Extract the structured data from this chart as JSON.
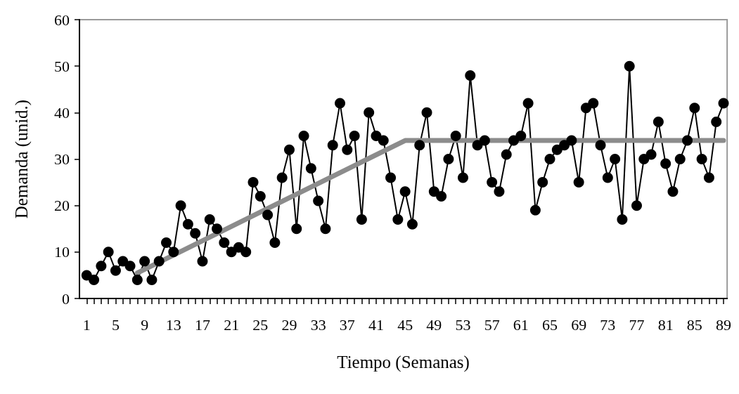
{
  "chart_data": {
    "type": "line",
    "xlabel": "Tiempo (Semanas)",
    "ylabel": "Demanda (unid.)",
    "xlim": [
      0,
      89.5
    ],
    "ylim": [
      0,
      60
    ],
    "yticks": [
      0,
      10,
      20,
      30,
      40,
      50,
      60
    ],
    "xticks": [
      1,
      {
        "value": 2,
        "label": null
      },
      {
        "value": 3,
        "label": null
      },
      {
        "value": 4,
        "label": null
      },
      5,
      {
        "value": 6,
        "label": null
      },
      {
        "value": 7,
        "label": null
      },
      {
        "value": 8,
        "label": null
      },
      9,
      {
        "value": 10,
        "label": null
      },
      {
        "value": 11,
        "label": null
      },
      {
        "value": 12,
        "label": null
      },
      13,
      {
        "value": 14,
        "label": null
      },
      {
        "value": 15,
        "label": null
      },
      {
        "value": 16,
        "label": null
      },
      17,
      {
        "value": 18,
        "label": null
      },
      {
        "value": 19,
        "label": null
      },
      {
        "value": 20,
        "label": null
      },
      21,
      {
        "value": 22,
        "label": null
      },
      {
        "value": 23,
        "label": null
      },
      {
        "value": 24,
        "label": null
      },
      25,
      {
        "value": 26,
        "label": null
      },
      {
        "value": 27,
        "label": null
      },
      {
        "value": 28,
        "label": null
      },
      29,
      {
        "value": 30,
        "label": null
      },
      {
        "value": 31,
        "label": null
      },
      {
        "value": 32,
        "label": null
      },
      33,
      {
        "value": 34,
        "label": null
      },
      {
        "value": 35,
        "label": null
      },
      {
        "value": 36,
        "label": null
      },
      37,
      {
        "value": 38,
        "label": null
      },
      {
        "value": 39,
        "label": null
      },
      {
        "value": 40,
        "label": null
      },
      41,
      {
        "value": 42,
        "label": null
      },
      {
        "value": 43,
        "label": null
      },
      {
        "value": 44,
        "label": null
      },
      45,
      {
        "value": 46,
        "label": null
      },
      {
        "value": 47,
        "label": null
      },
      {
        "value": 48,
        "label": null
      },
      49,
      {
        "value": 50,
        "label": null
      },
      {
        "value": 51,
        "label": null
      },
      {
        "value": 52,
        "label": null
      },
      53,
      {
        "value": 54,
        "label": null
      },
      {
        "value": 55,
        "label": null
      },
      {
        "value": 56,
        "label": null
      },
      57,
      {
        "value": 58,
        "label": null
      },
      {
        "value": 59,
        "label": null
      },
      {
        "value": 60,
        "label": null
      },
      61,
      {
        "value": 62,
        "label": null
      },
      {
        "value": 63,
        "label": null
      },
      {
        "value": 64,
        "label": null
      },
      65,
      {
        "value": 66,
        "label": null
      },
      {
        "value": 67,
        "label": null
      },
      {
        "value": 68,
        "label": null
      },
      69,
      {
        "value": 70,
        "label": null
      },
      {
        "value": 71,
        "label": null
      },
      {
        "value": 72,
        "label": null
      },
      73,
      {
        "value": 74,
        "label": null
      },
      {
        "value": 75,
        "label": null
      },
      {
        "value": 76,
        "label": null
      },
      77,
      {
        "value": 78,
        "label": null
      },
      {
        "value": 79,
        "label": null
      },
      {
        "value": 80,
        "label": null
      },
      81,
      {
        "value": 82,
        "label": null
      },
      {
        "value": 83,
        "label": null
      },
      {
        "value": 84,
        "label": null
      },
      85,
      {
        "value": 86,
        "label": null
      },
      {
        "value": 87,
        "label": null
      },
      {
        "value": 88,
        "label": null
      },
      89
    ],
    "grid": false,
    "series": [
      {
        "color": "#000000",
        "marker": "circle",
        "line_style": "solid",
        "x": [
          1,
          2,
          3,
          4,
          5,
          6,
          7,
          8,
          9,
          10,
          11,
          12,
          13,
          14,
          15,
          16,
          17,
          18,
          19,
          20,
          21,
          22,
          23,
          24,
          25,
          26,
          27,
          28,
          29,
          30,
          31,
          32,
          33,
          34,
          35,
          36,
          37,
          38,
          39,
          40,
          41,
          42,
          43,
          44,
          45,
          46,
          47,
          48,
          49,
          50,
          51,
          52,
          53,
          54,
          55,
          56,
          57,
          58,
          59,
          60,
          61,
          62,
          63,
          64,
          65,
          66,
          67,
          68,
          69,
          70,
          71,
          72,
          73,
          74,
          75,
          76,
          77,
          78,
          79,
          80,
          81,
          82,
          83,
          84,
          85,
          86,
          87,
          88,
          89
        ],
        "values": [
          5,
          4,
          7,
          10,
          6,
          8,
          7,
          4,
          8,
          4,
          8,
          12,
          10,
          20,
          16,
          14,
          8,
          17,
          15,
          12,
          10,
          11,
          10,
          25,
          22,
          18,
          12,
          26,
          32,
          15,
          35,
          28,
          21,
          15,
          33,
          42,
          32,
          35,
          17,
          40,
          35,
          34,
          26,
          17,
          23,
          16,
          33,
          40,
          23,
          22,
          30,
          35,
          26,
          48,
          33,
          34,
          25,
          23,
          31,
          34,
          35,
          42,
          19,
          25,
          30,
          32,
          33,
          34,
          25,
          41,
          42,
          33,
          26,
          30,
          17,
          50,
          20,
          30,
          31,
          38,
          29,
          23,
          30,
          34,
          41,
          30,
          26,
          38,
          42
        ]
      },
      {
        "type": "line",
        "color": "#8c8c8c",
        "marker": "none",
        "line_style": "solid",
        "x": [
          8,
          45,
          89
        ],
        "values": [
          5.5,
          34,
          34
        ]
      }
    ]
  }
}
